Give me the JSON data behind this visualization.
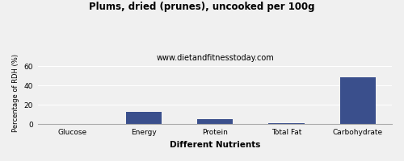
{
  "title": "Plums, dried (prunes), uncooked per 100g",
  "subtitle": "www.dietandfitnesstoday.com",
  "xlabel": "Different Nutrients",
  "ylabel": "Percentage of RDH (%)",
  "categories": [
    "Glucose",
    "Energy",
    "Protein",
    "Total Fat",
    "Carbohydrate"
  ],
  "values": [
    0.3,
    12.5,
    5.0,
    1.0,
    49.0
  ],
  "bar_color": "#3a4f8c",
  "ylim": [
    0,
    65
  ],
  "yticks": [
    0,
    20,
    40,
    60
  ],
  "background_color": "#f0f0f0",
  "title_fontsize": 8.5,
  "subtitle_fontsize": 7,
  "xlabel_fontsize": 7.5,
  "ylabel_fontsize": 6,
  "tick_fontsize": 6.5,
  "bar_width": 0.5
}
